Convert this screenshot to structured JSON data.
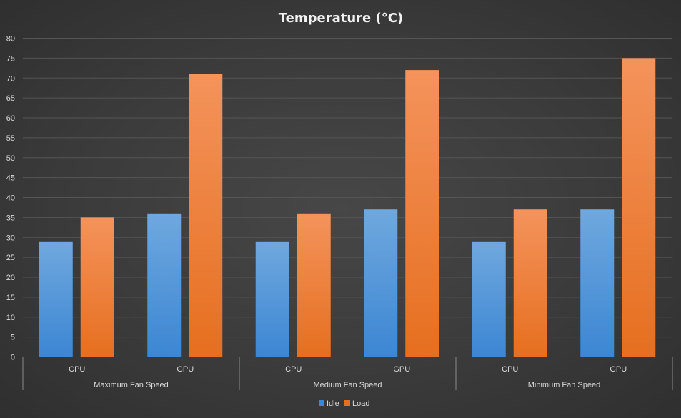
{
  "chart_data": {
    "type": "bar",
    "title": "Temperature (°C)",
    "xlabel": "",
    "ylabel": "",
    "ylim": [
      0,
      80
    ],
    "y_tick_step": 5,
    "grid": true,
    "legend_position": "bottom",
    "groups": [
      {
        "label": "Maximum Fan Speed",
        "categories": [
          "CPU",
          "GPU"
        ]
      },
      {
        "label": "Medium Fan Speed",
        "categories": [
          "CPU",
          "GPU"
        ]
      },
      {
        "label": "Minimum Fan Speed",
        "categories": [
          "CPU",
          "GPU"
        ]
      }
    ],
    "series": [
      {
        "name": "Idle",
        "values": [
          29,
          36,
          29,
          37,
          29,
          37
        ]
      },
      {
        "name": "Load",
        "values": [
          35,
          71,
          36,
          72,
          37,
          75
        ]
      }
    ]
  },
  "colors": {
    "idle_top": "#6fa8de",
    "idle_bottom": "#3c86d3",
    "load_top": "#f4935c",
    "load_bottom": "#e66f1f",
    "gridline": "#555555",
    "axis": "#8a8a8a",
    "text": "#d9d9d9",
    "title": "#f2f2f2"
  }
}
